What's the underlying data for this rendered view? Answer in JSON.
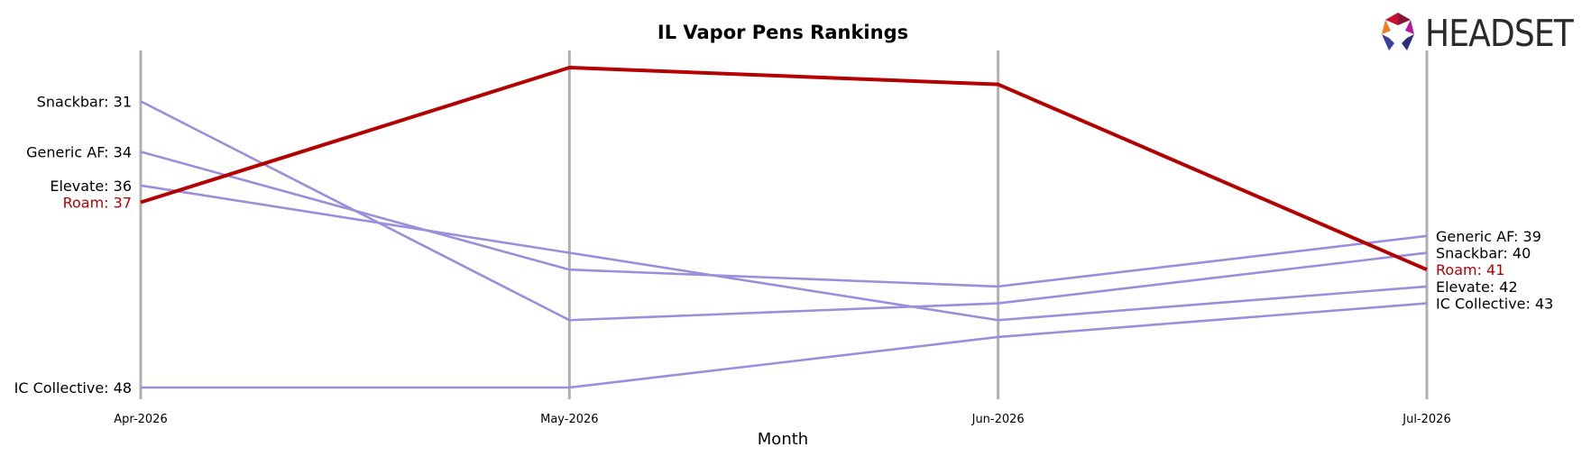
{
  "logo": {
    "text": "HEADSET"
  },
  "chart_data": {
    "type": "line",
    "title": "IL Vapor Pens Rankings",
    "xlabel": "Month",
    "ylabel": "",
    "categories": [
      "Apr-2026",
      "May-2026",
      "Jun-2026",
      "Jul-2026"
    ],
    "y_inverted": true,
    "ylim": [
      28.5,
      48.8
    ],
    "grid": false,
    "highlight_color": "#b30000",
    "other_color": "#9b8fdc",
    "axis_line_color": "#b0b0b0",
    "series": [
      {
        "name": "Roam",
        "values": [
          37,
          29,
          30,
          41
        ],
        "highlight": true
      },
      {
        "name": "Snackbar",
        "values": [
          31,
          44,
          43,
          40
        ],
        "highlight": false
      },
      {
        "name": "Generic AF",
        "values": [
          34,
          41,
          42,
          39
        ],
        "highlight": false
      },
      {
        "name": "Elevate",
        "values": [
          36,
          40,
          44,
          42
        ],
        "highlight": false
      },
      {
        "name": "IC Collective",
        "values": [
          48,
          48,
          45,
          43
        ],
        "highlight": false
      }
    ],
    "left_labels": [
      {
        "name": "Snackbar",
        "text": "Snackbar: 31"
      },
      {
        "name": "Generic AF",
        "text": "Generic AF: 34"
      },
      {
        "name": "Elevate",
        "text": "Elevate: 36"
      },
      {
        "name": "Roam",
        "text": "Roam: 37"
      },
      {
        "name": "IC Collective",
        "text": "IC Collective: 48"
      }
    ],
    "right_labels": [
      {
        "name": "Generic AF",
        "text": "Generic AF: 39"
      },
      {
        "name": "Snackbar",
        "text": "Snackbar: 40"
      },
      {
        "name": "Roam",
        "text": "Roam: 41"
      },
      {
        "name": "Elevate",
        "text": "Elevate: 42"
      },
      {
        "name": "IC Collective",
        "text": "IC Collective: 43"
      }
    ]
  }
}
